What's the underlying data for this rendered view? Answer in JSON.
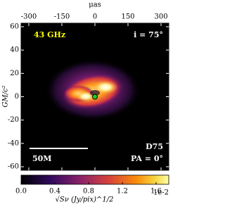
{
  "chart_data": {
    "type": "image",
    "x_label": "μas",
    "y_label": "GM/c²",
    "xlim": [
      -335,
      335
    ],
    "xticks": [
      -300,
      -150,
      0,
      150,
      300
    ],
    "ylim": [
      -63,
      63
    ],
    "yticks": [
      60,
      40,
      20,
      0,
      -20,
      -40,
      -60
    ],
    "annotations": [
      "43 GHz",
      "i = 75°",
      "D75",
      "PA = 0°"
    ],
    "scale_bar": {
      "label": "50M",
      "length": 50
    },
    "colorbar": {
      "label": "√Sν (Jy/pix)^1/2",
      "multiplier": "1e-2",
      "clim": [
        0,
        1.75
      ],
      "ticks": [
        {
          "value": 0,
          "label": "0.0"
        },
        0.4,
        0.8,
        1.2,
        1.6
      ]
    },
    "marker": {
      "x": 0,
      "y": 0,
      "color": "#22cc22"
    }
  }
}
